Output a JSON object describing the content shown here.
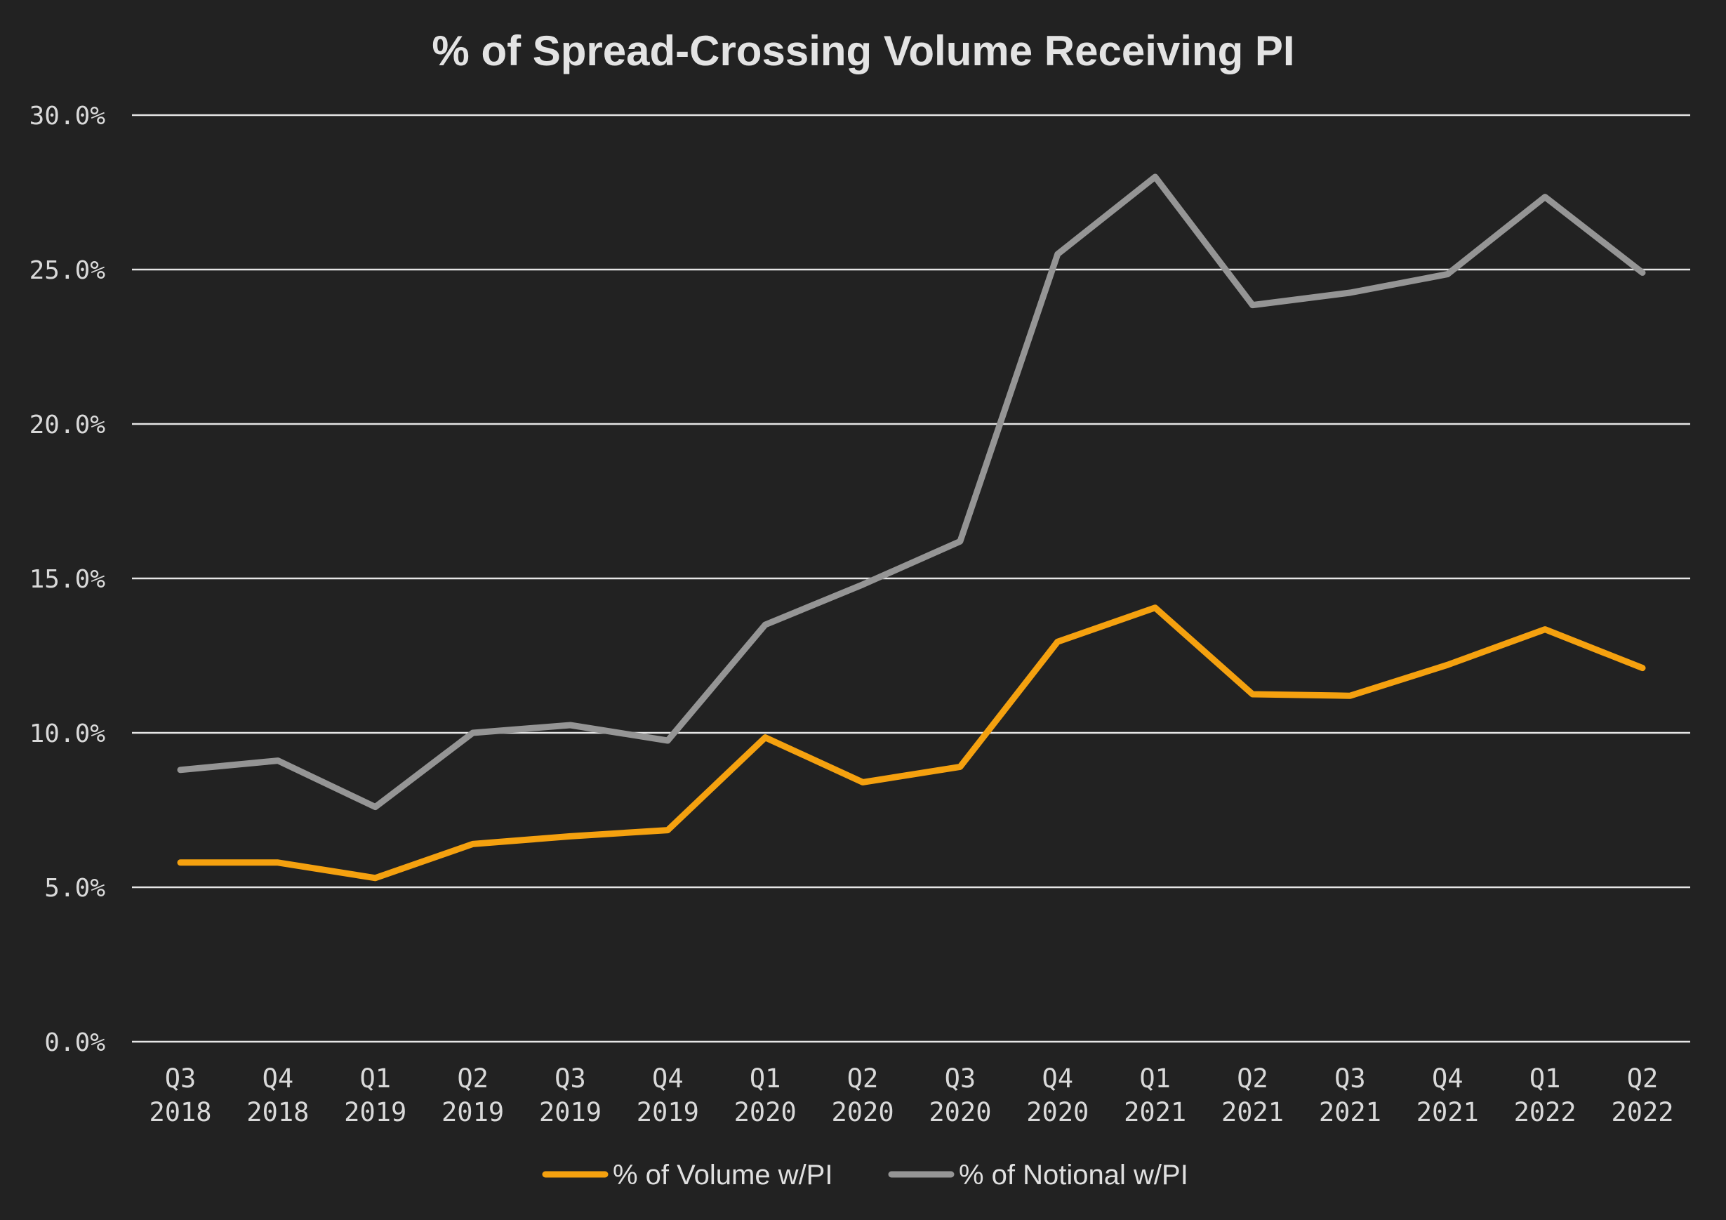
{
  "chart_data": {
    "type": "line",
    "title": "%  of Spread-Crossing Volume Receiving PI",
    "xlabel": "",
    "ylabel": "",
    "ylim": [
      0,
      30
    ],
    "yticks": [
      0,
      5,
      10,
      15,
      20,
      25,
      30
    ],
    "ytick_labels": [
      "0.0%",
      "5.0%",
      "10.0%",
      "15.0%",
      "20.0%",
      "25.0%",
      "30.0%"
    ],
    "categories": [
      [
        "Q3",
        "2018"
      ],
      [
        "Q4",
        "2018"
      ],
      [
        "Q1",
        "2019"
      ],
      [
        "Q2",
        "2019"
      ],
      [
        "Q3",
        "2019"
      ],
      [
        "Q4",
        "2019"
      ],
      [
        "Q1",
        "2020"
      ],
      [
        "Q2",
        "2020"
      ],
      [
        "Q3",
        "2020"
      ],
      [
        "Q4",
        "2020"
      ],
      [
        "Q1",
        "2021"
      ],
      [
        "Q2",
        "2021"
      ],
      [
        "Q3",
        "2021"
      ],
      [
        "Q4",
        "2021"
      ],
      [
        "Q1",
        "2022"
      ],
      [
        "Q2",
        "2022"
      ]
    ],
    "series": [
      {
        "name": "% of Volume w/PI",
        "color": "#f5a10f",
        "values": [
          5.8,
          5.8,
          5.3,
          6.4,
          6.65,
          6.85,
          9.85,
          8.4,
          8.9,
          12.95,
          14.05,
          11.25,
          11.2,
          12.2,
          13.35,
          12.1
        ]
      },
      {
        "name": "% of Notional w/PI",
        "color": "#959595",
        "values": [
          8.8,
          9.1,
          7.6,
          10.0,
          10.25,
          9.75,
          13.5,
          14.8,
          16.2,
          25.5,
          28.0,
          23.85,
          24.25,
          24.85,
          27.35,
          24.9
        ]
      }
    ],
    "grid": true,
    "legend": "bottom-center"
  }
}
